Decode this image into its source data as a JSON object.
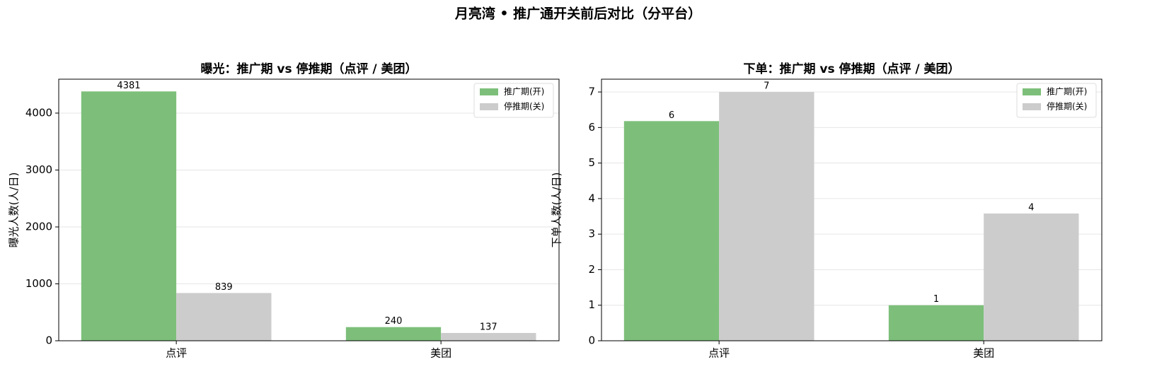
{
  "title": "月亮湾 • 推广通开关前后对比（分平台）",
  "chart_data": [
    {
      "type": "bar",
      "title": "曝光：推广期 vs 停推期（点评 / 美团）",
      "y_label": "曝光人数(人/日)",
      "categories": [
        "点评",
        "美团"
      ],
      "series": [
        {
          "name": "推广期(开)",
          "color": "#7dbf7a",
          "values": [
            4381,
            240
          ]
        },
        {
          "name": "停推期(关)",
          "color": "#cccccc",
          "values": [
            839,
            137
          ]
        }
      ],
      "ylim": [
        0,
        4596
      ],
      "yticks": [
        0,
        1000,
        2000,
        3000,
        4000
      ],
      "grid": true,
      "legend": "upper right"
    },
    {
      "type": "bar",
      "title": "下单：推广期 vs 停推期（点评 / 美团）",
      "y_label": "下单人数(人/日)",
      "categories": [
        "点评",
        "美团"
      ],
      "series": [
        {
          "name": "推广期(开)",
          "color": "#7dbf7a",
          "values": [
            6.18,
            1
          ],
          "value_labels": [
            "6",
            "1"
          ]
        },
        {
          "name": "停推期(关)",
          "color": "#cccccc",
          "values": [
            7,
            3.58
          ],
          "value_labels": [
            "7",
            "4"
          ]
        }
      ],
      "ylim": [
        0,
        7.36
      ],
      "yticks": [
        0,
        1,
        2,
        3,
        4,
        5,
        6,
        7
      ],
      "grid": true,
      "legend": "upper right"
    }
  ]
}
